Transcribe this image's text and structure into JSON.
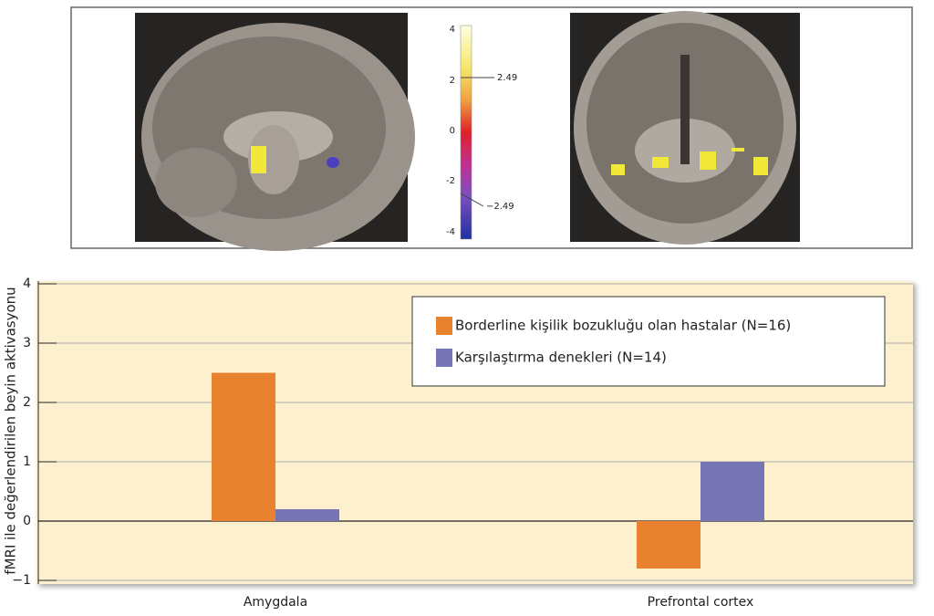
{
  "brain_figure": {
    "colorbar_ticks": [
      "4",
      "2",
      "0",
      "-2",
      "-4"
    ],
    "thresholds": [
      "2.49",
      "−2.49"
    ]
  },
  "chart_data": {
    "type": "bar",
    "y_label": "fMRI ile değerlendirilen beyin aktivasyonu",
    "categories": [
      "Amygdala",
      "Prefrontal cortex"
    ],
    "series": [
      {
        "name": "Borderline kişilik bozukluğu olan hastalar (N=16)",
        "color": "#e8822e",
        "values": [
          2.5,
          -0.8
        ]
      },
      {
        "name": "Karşılaştırma denekleri (N=14)",
        "color": "#7875b5",
        "values": [
          0.2,
          1.0
        ]
      }
    ],
    "ylim": [
      -1,
      4
    ],
    "yticks": [
      {
        "value": -1,
        "label": "−1"
      },
      0,
      1,
      2,
      3,
      4
    ],
    "grid": true,
    "legend": "top-right"
  }
}
